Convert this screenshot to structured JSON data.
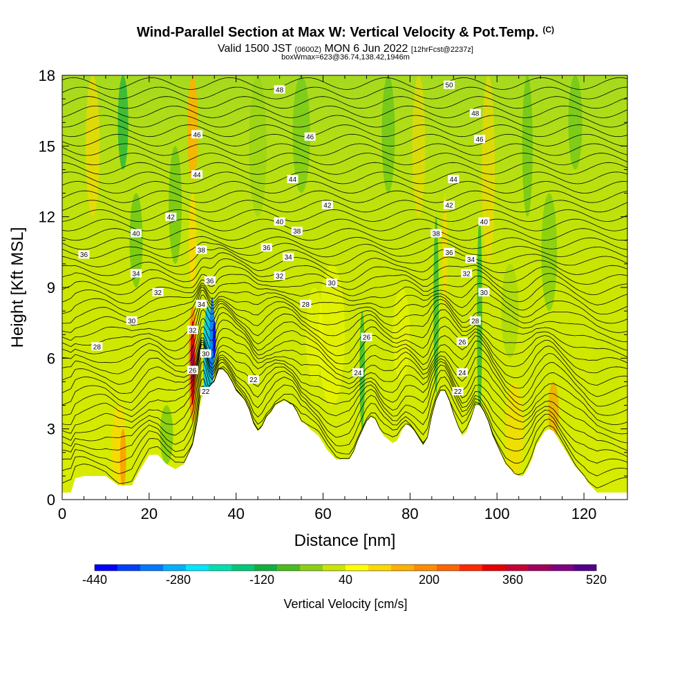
{
  "chart_data": {
    "type": "heatmap",
    "title": "Wind-Parallel Section at Max W: Vertical Velocity & Pot.Temp.",
    "title_tag": "(C)",
    "subtitle_main_a": "Valid 1500 JST",
    "subtitle_small_a": "(0600Z)",
    "subtitle_main_b": "MON 6 Jun 2022",
    "subtitle_small_b": "[12hrFcst@2237z]",
    "subtitle2": "boxWmax=623@36.74,138.42,1946m",
    "xlabel": "Distance [nm]",
    "ylabel": "Height [Kft MSL]",
    "xlim": [
      0,
      130
    ],
    "ylim": [
      0,
      18
    ],
    "x_ticks": [
      0,
      20,
      40,
      60,
      80,
      100,
      120
    ],
    "y_ticks": [
      0,
      3,
      6,
      9,
      12,
      15,
      18
    ],
    "colorbar": {
      "label": "Vertical Velocity [cm/s]",
      "tick_labels": [
        "-440",
        "-280",
        "-120",
        "40",
        "200",
        "360",
        "520"
      ],
      "tick_values": [
        -440,
        -280,
        -120,
        40,
        200,
        360,
        520
      ],
      "colors": [
        "#0000ff",
        "#0040ff",
        "#0078ff",
        "#00b0ff",
        "#00e6ff",
        "#00e0b0",
        "#00c878",
        "#10b040",
        "#4cbc1c",
        "#8cd014",
        "#c8e600",
        "#ffff00",
        "#ffd700",
        "#ffb000",
        "#ff8c00",
        "#ff6400",
        "#ff2800",
        "#e60000",
        "#c80032",
        "#a0005a",
        "#800080",
        "#50008c"
      ]
    },
    "terrain": [
      [
        0,
        0.3
      ],
      [
        2,
        0.3
      ],
      [
        3,
        0.9
      ],
      [
        5,
        1.0
      ],
      [
        10,
        1.0
      ],
      [
        13,
        0.6
      ],
      [
        16,
        0.6
      ],
      [
        18,
        1.3
      ],
      [
        20,
        1.9
      ],
      [
        22,
        1.9
      ],
      [
        24,
        1.5
      ],
      [
        26,
        1.3
      ],
      [
        28,
        1.5
      ],
      [
        30,
        2.3
      ],
      [
        31,
        3.2
      ],
      [
        32,
        4.3
      ],
      [
        34,
        4.8
      ],
      [
        35,
        5.0
      ],
      [
        36,
        5.5
      ],
      [
        37,
        5.5
      ],
      [
        38,
        5.3
      ],
      [
        39,
        5.0
      ],
      [
        40,
        4.6
      ],
      [
        42,
        4.2
      ],
      [
        43,
        3.8
      ],
      [
        44,
        3.2
      ],
      [
        45,
        2.9
      ],
      [
        46,
        3.1
      ],
      [
        47,
        3.5
      ],
      [
        48,
        3.7
      ],
      [
        49,
        4.0
      ],
      [
        51,
        4.2
      ],
      [
        53,
        4.0
      ],
      [
        54,
        3.7
      ],
      [
        55,
        3.3
      ],
      [
        56,
        3.2
      ],
      [
        57,
        3.0
      ],
      [
        59,
        2.7
      ],
      [
        60,
        2.4
      ],
      [
        61,
        2.1
      ],
      [
        62,
        1.9
      ],
      [
        63,
        1.7
      ],
      [
        66,
        1.7
      ],
      [
        67,
        2.0
      ],
      [
        68,
        2.5
      ],
      [
        69,
        2.9
      ],
      [
        70,
        3.3
      ],
      [
        71,
        3.5
      ],
      [
        72,
        3.4
      ],
      [
        73,
        3.0
      ],
      [
        74,
        2.7
      ],
      [
        76,
        2.4
      ],
      [
        77,
        2.5
      ],
      [
        78,
        2.9
      ],
      [
        79,
        3.2
      ],
      [
        80,
        3.1
      ],
      [
        81,
        2.9
      ],
      [
        82,
        2.6
      ],
      [
        83,
        2.3
      ],
      [
        84,
        2.6
      ],
      [
        85,
        3.5
      ],
      [
        86,
        4.2
      ],
      [
        87,
        4.6
      ],
      [
        88,
        4.6
      ],
      [
        89,
        4.2
      ],
      [
        90,
        3.6
      ],
      [
        91,
        3.1
      ],
      [
        92,
        2.7
      ],
      [
        93,
        2.9
      ],
      [
        94,
        3.4
      ],
      [
        95,
        4.0
      ],
      [
        96,
        4.0
      ],
      [
        97,
        3.7
      ],
      [
        98,
        3.3
      ],
      [
        99,
        2.7
      ],
      [
        100,
        2.3
      ],
      [
        101,
        1.9
      ],
      [
        102,
        1.5
      ],
      [
        103,
        1.3
      ],
      [
        104,
        1.1
      ],
      [
        105,
        1.0
      ],
      [
        106,
        1.0
      ],
      [
        107,
        1.3
      ],
      [
        108,
        1.7
      ],
      [
        109,
        2.3
      ],
      [
        110,
        2.6
      ],
      [
        111,
        2.9
      ],
      [
        112,
        3.0
      ],
      [
        113,
        2.9
      ],
      [
        114,
        2.6
      ],
      [
        115,
        2.3
      ],
      [
        116,
        2.0
      ],
      [
        117,
        1.7
      ],
      [
        118,
        1.4
      ],
      [
        119,
        1.2
      ],
      [
        120,
        1.0
      ],
      [
        121,
        0.7
      ],
      [
        122,
        0.5
      ],
      [
        123,
        0.3
      ],
      [
        130,
        0.3
      ]
    ],
    "contour_labels": [
      {
        "x": 8,
        "y": 6.5,
        "text": "28"
      },
      {
        "x": 16,
        "y": 7.6,
        "text": "30"
      },
      {
        "x": 22,
        "y": 8.8,
        "text": "32"
      },
      {
        "x": 17,
        "y": 9.6,
        "text": "34"
      },
      {
        "x": 5,
        "y": 10.4,
        "text": "36"
      },
      {
        "x": 17,
        "y": 11.3,
        "text": "40"
      },
      {
        "x": 25,
        "y": 12.0,
        "text": "42"
      },
      {
        "x": 31,
        "y": 13.8,
        "text": "44"
      },
      {
        "x": 31,
        "y": 15.5,
        "text": "46"
      },
      {
        "x": 50,
        "y": 17.4,
        "text": "48"
      },
      {
        "x": 30,
        "y": 5.5,
        "text": "26"
      },
      {
        "x": 30,
        "y": 7.2,
        "text": "32"
      },
      {
        "x": 32,
        "y": 8.3,
        "text": "34"
      },
      {
        "x": 34,
        "y": 9.3,
        "text": "36"
      },
      {
        "x": 32,
        "y": 10.6,
        "text": "38"
      },
      {
        "x": 33,
        "y": 6.2,
        "text": "30"
      },
      {
        "x": 33,
        "y": 4.6,
        "text": "22"
      },
      {
        "x": 44,
        "y": 5.1,
        "text": "22"
      },
      {
        "x": 56,
        "y": 8.3,
        "text": "28"
      },
      {
        "x": 62,
        "y": 9.2,
        "text": "30"
      },
      {
        "x": 50,
        "y": 9.5,
        "text": "32"
      },
      {
        "x": 52,
        "y": 10.3,
        "text": "34"
      },
      {
        "x": 47,
        "y": 10.7,
        "text": "36"
      },
      {
        "x": 54,
        "y": 11.4,
        "text": "38"
      },
      {
        "x": 50,
        "y": 11.8,
        "text": "40"
      },
      {
        "x": 61,
        "y": 12.5,
        "text": "42"
      },
      {
        "x": 53,
        "y": 13.6,
        "text": "44"
      },
      {
        "x": 57,
        "y": 15.4,
        "text": "46"
      },
      {
        "x": 70,
        "y": 6.9,
        "text": "26"
      },
      {
        "x": 68,
        "y": 5.4,
        "text": "24"
      },
      {
        "x": 90,
        "y": 13.6,
        "text": "44"
      },
      {
        "x": 89,
        "y": 12.5,
        "text": "42"
      },
      {
        "x": 86,
        "y": 11.3,
        "text": "38"
      },
      {
        "x": 89,
        "y": 10.5,
        "text": "36"
      },
      {
        "x": 94,
        "y": 10.2,
        "text": "34"
      },
      {
        "x": 93,
        "y": 9.6,
        "text": "32"
      },
      {
        "x": 97,
        "y": 11.8,
        "text": "40"
      },
      {
        "x": 97,
        "y": 8.8,
        "text": "30"
      },
      {
        "x": 95,
        "y": 7.6,
        "text": "28"
      },
      {
        "x": 92,
        "y": 6.7,
        "text": "26"
      },
      {
        "x": 92,
        "y": 5.4,
        "text": "24"
      },
      {
        "x": 91,
        "y": 4.6,
        "text": "22"
      },
      {
        "x": 89,
        "y": 17.6,
        "text": "50"
      },
      {
        "x": 95,
        "y": 16.4,
        "text": "48"
      },
      {
        "x": 96,
        "y": 15.3,
        "text": "46"
      }
    ]
  }
}
